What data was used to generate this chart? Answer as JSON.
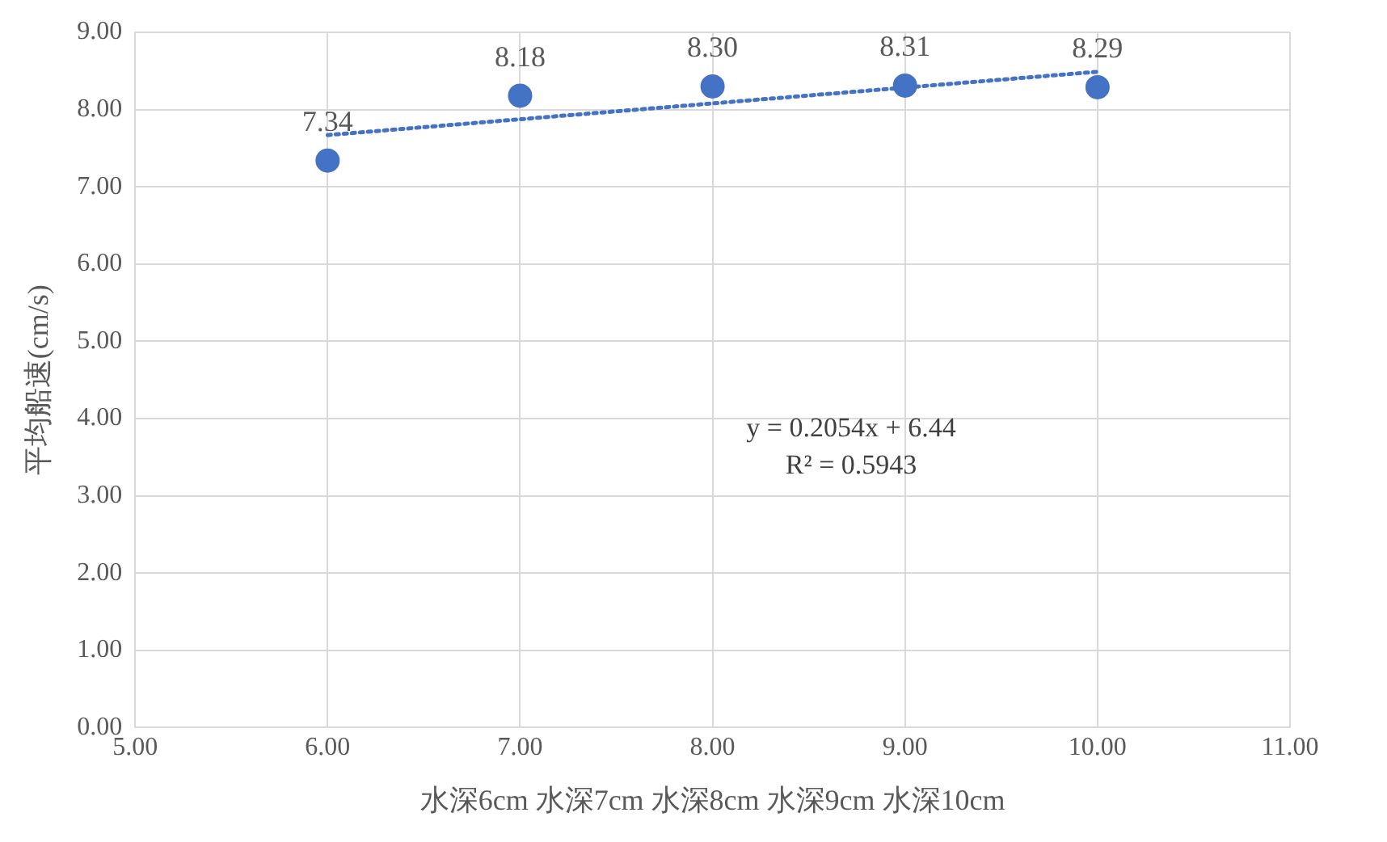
{
  "chart_data": {
    "type": "scatter",
    "xlabel": "水深6cm 水深7cm 水深8cm 水深9cm 水深10cm",
    "ylabel": "平均船速(cm/s)",
    "x": [
      6,
      7,
      8,
      9,
      10
    ],
    "series": [
      {
        "type": "scatter",
        "color": "#4472c4",
        "marker": "circle",
        "values": [
          7.34,
          8.18,
          8.3,
          8.31,
          8.29
        ],
        "value_labels": [
          "7.34",
          "8.18",
          "8.30",
          "8.31",
          "8.29"
        ]
      },
      {
        "type": "line",
        "color": "#4472c4",
        "marker": "none",
        "line_style": "dotted",
        "x": [
          6,
          10
        ],
        "values": [
          7.67,
          8.49
        ]
      }
    ],
    "xlim": [
      5,
      11
    ],
    "xticks": [
      {
        "value": 5,
        "label": "5.00"
      },
      {
        "value": 6,
        "label": "6.00"
      },
      {
        "value": 7,
        "label": "7.00"
      },
      {
        "value": 8,
        "label": "8.00"
      },
      {
        "value": 9,
        "label": "9.00"
      },
      {
        "value": 10,
        "label": "10.00"
      },
      {
        "value": 11,
        "label": "11.00"
      }
    ],
    "ylim": [
      0,
      9
    ],
    "yticks": [
      {
        "value": 0,
        "label": "0.00"
      },
      {
        "value": 1,
        "label": "1.00"
      },
      {
        "value": 2,
        "label": "2.00"
      },
      {
        "value": 3,
        "label": "3.00"
      },
      {
        "value": 4,
        "label": "4.00"
      },
      {
        "value": 5,
        "label": "5.00"
      },
      {
        "value": 6,
        "label": "6.00"
      },
      {
        "value": 7,
        "label": "7.00"
      },
      {
        "value": 8,
        "label": "8.00"
      },
      {
        "value": 9,
        "label": "9.00"
      }
    ],
    "annotations": [
      "y = 0.2054x + 6.44",
      "R² = 0.5943"
    ],
    "grid": true,
    "legend": false
  }
}
